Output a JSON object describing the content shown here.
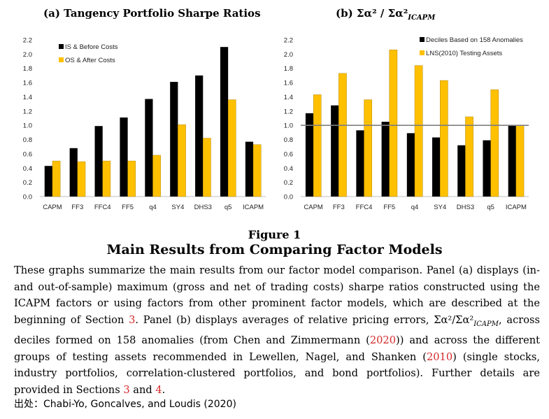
{
  "panel_a": {
    "title": "(a) Tangency Portfolio Sharpe Ratios"
  },
  "panel_b": {
    "title_prefix": "(b)",
    "title_math": "Σα² / Σα²",
    "title_sub": "ICAPM"
  },
  "colors": {
    "series_1": "#000000",
    "series_2": "#FFC000",
    "reference_line": "#7f7f7f",
    "axis": "#bfbfbf",
    "ref_link": "#d62728"
  },
  "chart_data": [
    {
      "type": "bar",
      "title": "(a) Tangency Portfolio Sharpe Ratios",
      "categories": [
        "CAPM",
        "FF3",
        "FFC4",
        "FF5",
        "q4",
        "SY4",
        "DHS3",
        "q5",
        "ICAPM"
      ],
      "series": [
        {
          "name": "IS & Before Costs",
          "values": [
            0.43,
            0.68,
            0.99,
            1.11,
            1.37,
            1.61,
            1.7,
            2.1,
            0.77
          ]
        },
        {
          "name": "OS & After Costs",
          "values": [
            0.5,
            0.49,
            0.5,
            0.5,
            0.58,
            1.01,
            0.82,
            1.36,
            0.73
          ]
        }
      ],
      "ylim": [
        0,
        2.2
      ],
      "yticks": [
        "0.0",
        "0.2",
        "0.4",
        "0.6",
        "0.8",
        "1.0",
        "1.2",
        "1.4",
        "1.6",
        "1.8",
        "2.0",
        "2.2"
      ],
      "grid": false,
      "legend": "top-left"
    },
    {
      "type": "bar",
      "title": "(b) Σα² / Σα²ICAPM",
      "categories": [
        "CAPM",
        "FF3",
        "FFC4",
        "FF5",
        "q4",
        "SY4",
        "DHS3",
        "q5",
        "ICAPM"
      ],
      "series": [
        {
          "name": "Deciles Based on 158 Anomalies",
          "values": [
            1.17,
            1.28,
            0.93,
            1.05,
            0.89,
            0.83,
            0.72,
            0.79,
            1.0
          ]
        },
        {
          "name": "LNS(2010) Testing Assets",
          "values": [
            1.43,
            1.73,
            1.36,
            2.06,
            1.84,
            1.63,
            1.12,
            1.5,
            1.0
          ]
        }
      ],
      "ylim": [
        0,
        2.2
      ],
      "yticks": [
        "0.0",
        "0.2",
        "0.4",
        "0.6",
        "0.8",
        "1.0",
        "1.2",
        "1.4",
        "1.6",
        "1.8",
        "2.0",
        "2.2"
      ],
      "reference_line": 1.0,
      "grid": false,
      "legend": "top-left"
    }
  ],
  "figure": {
    "number": "Figure 1",
    "title": "Main Results from Comparing Factor Models",
    "caption_parts": [
      "These graphs summarize the main results from our factor model comparison. Panel (a) displays (in- and out-of-sample) maximum (gross and net of trading costs) sharpe ratios constructed using the ICAPM factors or using factors from other prominent factor models, which are described at the beginning of Section ",
      "3",
      ". Panel (b) displays averages of relative pricing errors, Σα²/Σα²",
      "ICAPM",
      ", across deciles formed on 158 anomalies (from Chen and Zimmermann (",
      "2020",
      ")) and across the different groups of testing assets recommended in Lewellen, Nagel, and Shanken (",
      "2010",
      ") (single stocks, industry portfolios, correlation-clustered portfolios, and bond portfolios). Further details are provided in Sections ",
      "3",
      " and ",
      "4",
      "."
    ]
  },
  "source": "出处：Chabi-Yo, Goncalves, and Loudis (2020)"
}
